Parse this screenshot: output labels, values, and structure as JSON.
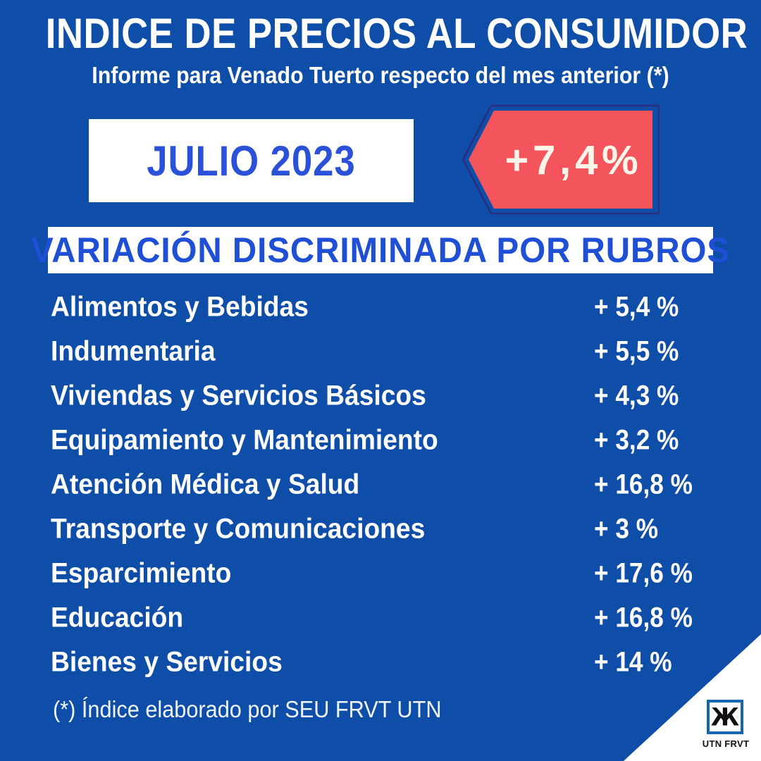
{
  "header": {
    "title": "INDICE DE PRECIOS AL CONSUMIDOR",
    "subtitle": "Informe para Venado Tuerto respecto del mes anterior (*)"
  },
  "period": {
    "label": "JULIO 2023"
  },
  "headline": {
    "value": "+7,4%"
  },
  "section": {
    "title": "VARIACIÓN DISCRIMINADA POR RUBROS"
  },
  "categories": [
    {
      "label": "Alimentos y Bebidas",
      "value": "+ 5,4 %"
    },
    {
      "label": "Indumentaria",
      "value": "+ 5,5 %"
    },
    {
      "label": "Viviendas y Servicios Básicos",
      "value": "+ 4,3 %"
    },
    {
      "label": "Equipamiento y Mantenimiento",
      "value": "+ 3,2 %"
    },
    {
      "label": "Atención Médica y Salud",
      "value": "+ 16,8 %"
    },
    {
      "label": "Transporte y Comunicaciones",
      "value": "+ 3 %"
    },
    {
      "label": "Esparcimiento",
      "value": "+ 17,6 %"
    },
    {
      "label": "Educación",
      "value": "+ 16,8 %"
    },
    {
      "label": "Bienes y Servicios",
      "value": "+ 14 %"
    }
  ],
  "footnote": {
    "text": "(*) Índice elaborado por SEU FRVT UTN"
  },
  "logo": {
    "glyph": "Ж",
    "caption": "UTN FRVT"
  },
  "colors": {
    "background": "#0E4DA8",
    "accent_blue": "#2B51D8",
    "section_blue": "#1E4FD4",
    "badge_red": "#F4555C",
    "badge_border": "#2A2E7E",
    "badge_text": "#FCF5E9",
    "text_white": "#FFFFFF",
    "logo_blue": "#1566B0"
  },
  "chart_data": {
    "type": "table",
    "title": "INDICE DE PRECIOS AL CONSUMIDOR",
    "subtitle": "Informe para Venado Tuerto respecto del mes anterior (*)",
    "period": "JULIO 2023",
    "overall_variation_pct": 7.4,
    "categories": [
      "Alimentos y Bebidas",
      "Indumentaria",
      "Viviendas y Servicios Básicos",
      "Equipamiento y Mantenimiento",
      "Atención Médica y Salud",
      "Transporte y Comunicaciones",
      "Esparcimiento",
      "Educación",
      "Bienes y Servicios"
    ],
    "values_pct": [
      5.4,
      5.5,
      4.3,
      3.2,
      16.8,
      3,
      17.6,
      16.8,
      14
    ],
    "source": "SEU FRVT UTN"
  }
}
